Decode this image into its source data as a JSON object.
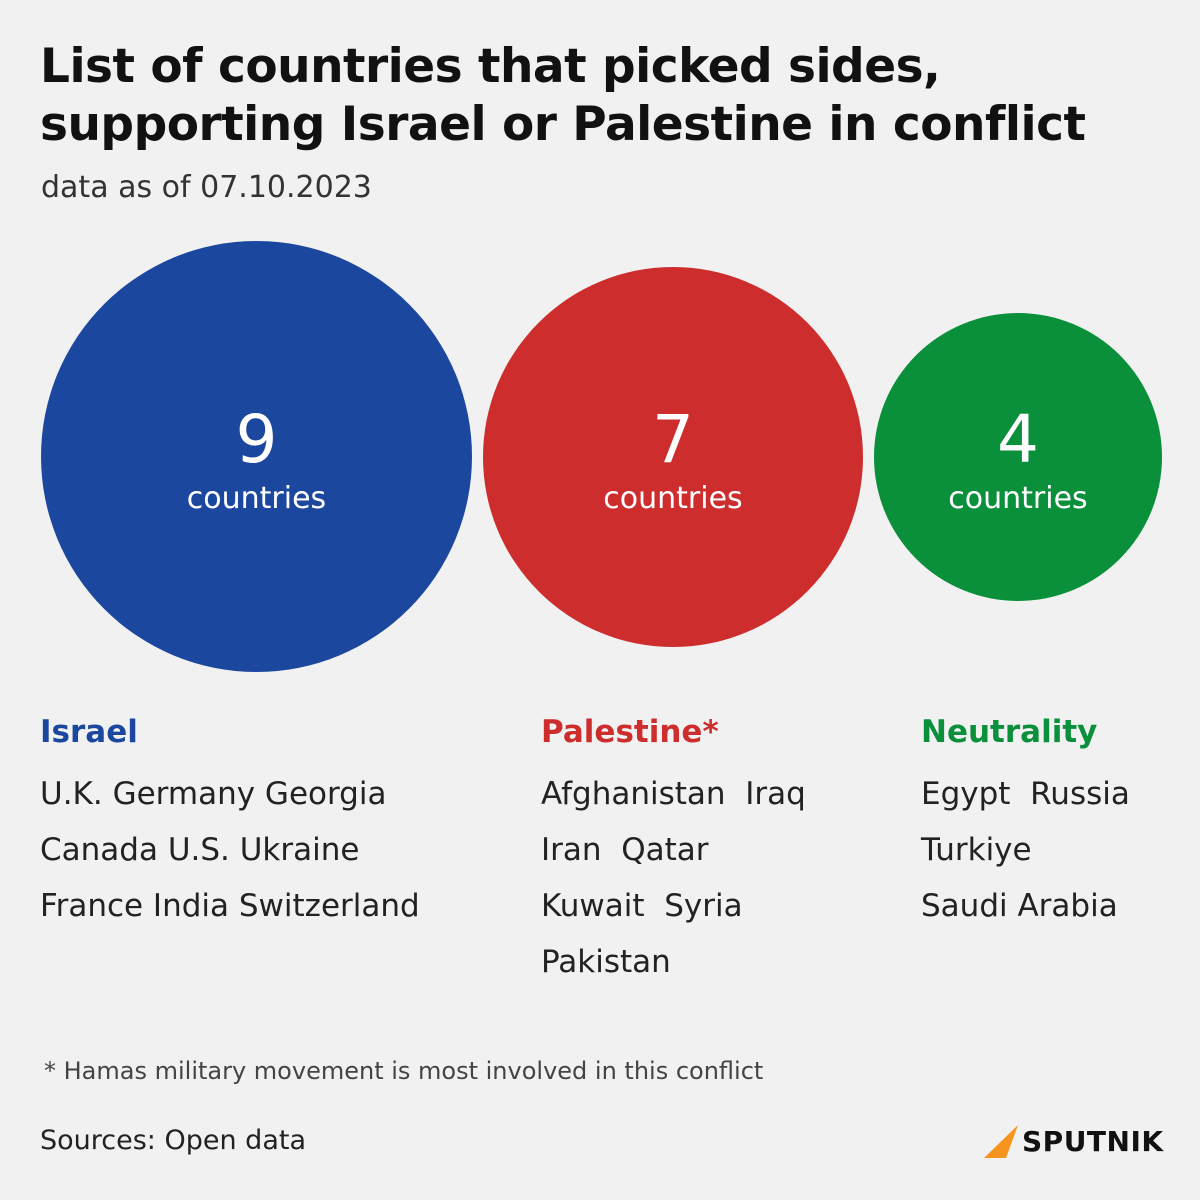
{
  "header": {
    "title_line1": "List of countries that picked sides,",
    "title_line2": "supporting Israel or Palestine in conflict",
    "subtitle": "data as of 07.10.2023"
  },
  "colors": {
    "israel": "#1c479e",
    "palestine": "#cd2d2d",
    "neutrality": "#0a8f3a",
    "background": "#f1f1f1",
    "logo_accent": "#f7941d"
  },
  "chart_data": {
    "type": "bubble",
    "title": "List of countries that picked sides, supporting Israel or Palestine in conflict",
    "subtitle": "data as of 07.10.2023",
    "categories": [
      "Israel",
      "Palestine*",
      "Neutrality"
    ],
    "values": [
      9,
      7,
      4
    ],
    "unit": "countries",
    "bubbles": [
      {
        "label": "9",
        "unit": "countries",
        "color": "#1c479e"
      },
      {
        "label": "7",
        "unit": "countries",
        "color": "#cd2d2d"
      },
      {
        "label": "4",
        "unit": "countries",
        "color": "#0a8f3a"
      }
    ]
  },
  "columns": [
    {
      "heading": "Israel",
      "rows": [
        "U.K. Germany Georgia",
        "Canada U.S. Ukraine",
        "France India Switzerland"
      ]
    },
    {
      "heading": "Palestine*",
      "rows": [
        "Afghanistan  Iraq",
        "Iran  Qatar",
        "Kuwait  Syria",
        "Pakistan"
      ]
    },
    {
      "heading": "Neutrality",
      "rows": [
        "Egypt  Russia",
        "Turkiye",
        "Saudi Arabia"
      ]
    }
  ],
  "footnote": "* Hamas military movement is most involved in this conflict",
  "sources": "Sources: Open data",
  "logo": {
    "icon": "sputnik-logo-icon",
    "text": "SPUTNIK"
  }
}
